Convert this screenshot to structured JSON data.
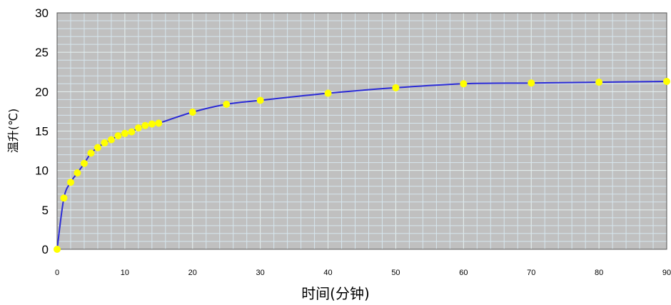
{
  "chart_data": {
    "type": "line",
    "title": "",
    "xlabel": "时间(分钟)",
    "ylabel": "温升(℃)",
    "xlim": [
      0,
      90
    ],
    "ylim": [
      0,
      30
    ],
    "xticks": [
      "0",
      "10",
      "20",
      "30",
      "40",
      "50",
      "60",
      "70",
      "80",
      "90"
    ],
    "yticks": [
      "0",
      "5",
      "10",
      "15",
      "20",
      "25",
      "30"
    ],
    "grid": true,
    "legend": "none",
    "colors": {
      "line": "#2b2bd6",
      "marker": "#ffff00",
      "plot_background": "#c0c0c0",
      "major_grid": "#e6f2f2",
      "minor_grid": "#d6e6ee",
      "frame": "#555555"
    },
    "series": [
      {
        "x": [
          0,
          1,
          2,
          3,
          4,
          5,
          6,
          7,
          8,
          9,
          10,
          11,
          12,
          13,
          14,
          15,
          20,
          25,
          30,
          40,
          50,
          60,
          70,
          80,
          90
        ],
        "y": [
          0,
          6.5,
          8.5,
          9.7,
          10.9,
          12.2,
          12.9,
          13.5,
          13.9,
          14.4,
          14.7,
          14.9,
          15.4,
          15.7,
          15.9,
          16.0,
          17.4,
          18.4,
          18.9,
          19.8,
          20.5,
          21.0,
          21.1,
          21.2,
          21.3
        ]
      }
    ]
  }
}
